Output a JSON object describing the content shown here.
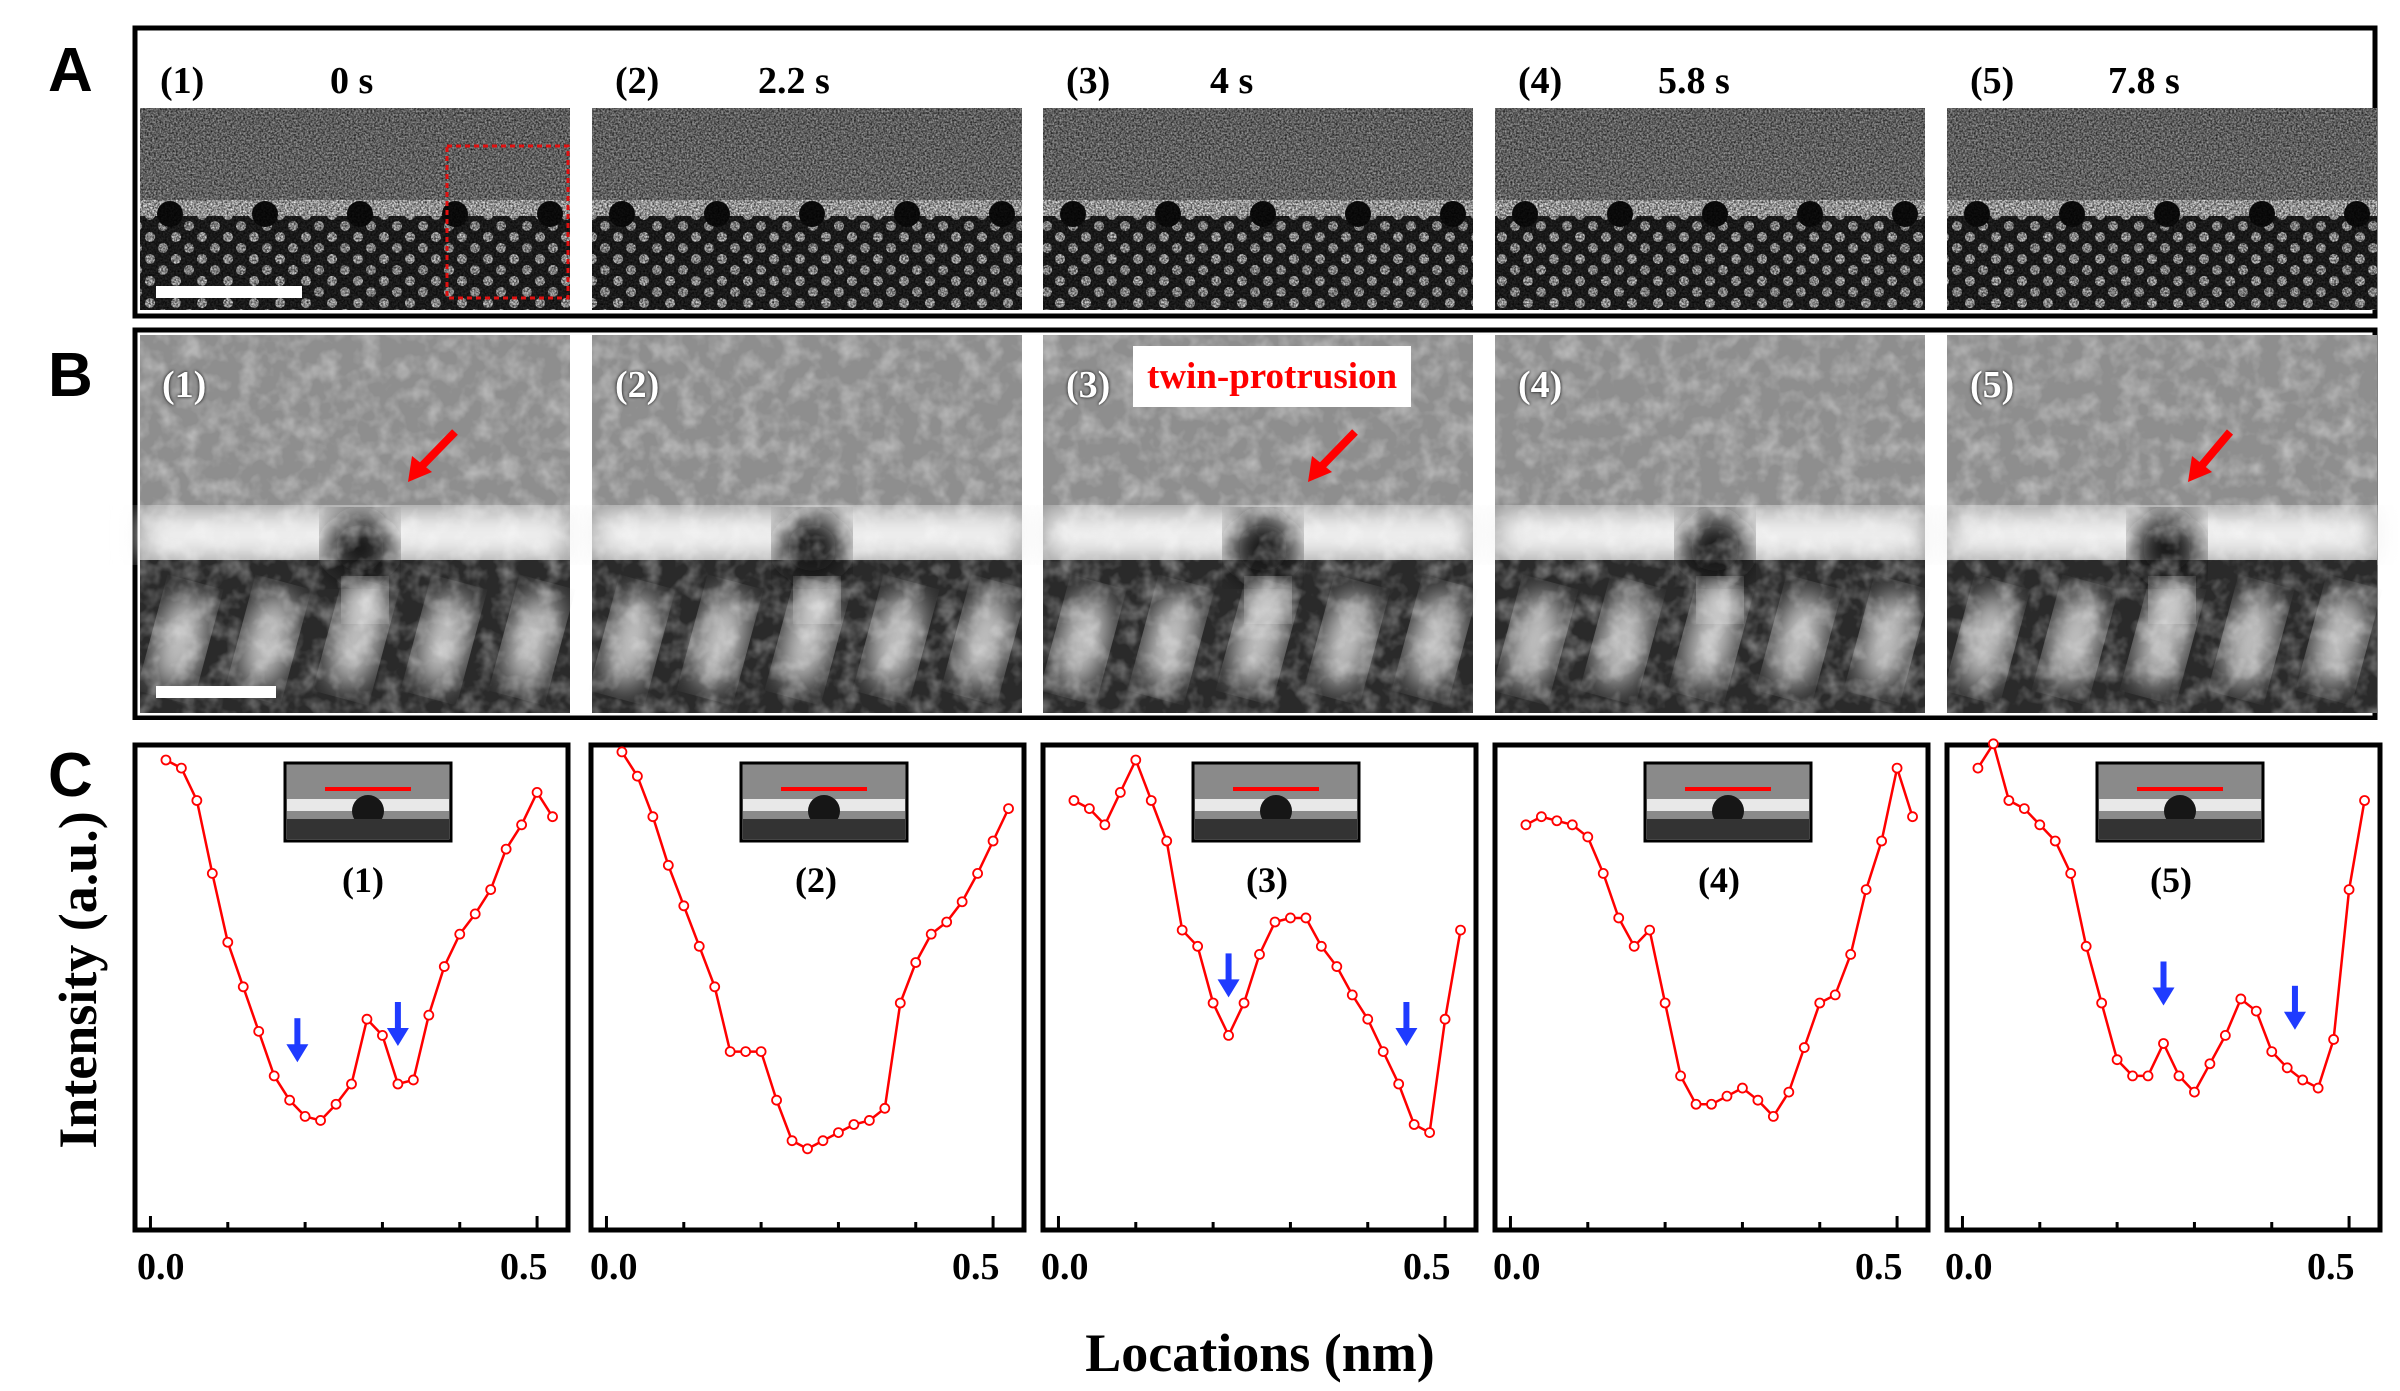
{
  "panel_letters": [
    "A",
    "B",
    "C"
  ],
  "panel_a": {
    "frames": [
      {
        "label": "(1)",
        "time": "0 s"
      },
      {
        "label": "(2)",
        "time": "2.2 s"
      },
      {
        "label": "(3)",
        "time": "4 s"
      },
      {
        "label": "(4)",
        "time": "5.8 s"
      },
      {
        "label": "(5)",
        "time": "7.8 s"
      }
    ]
  },
  "panel_b": {
    "frames": [
      {
        "label": "(1)"
      },
      {
        "label": "(2)"
      },
      {
        "label": "(3)"
      },
      {
        "label": "(4)"
      },
      {
        "label": "(5)"
      }
    ],
    "annotation": "twin-protrusion"
  },
  "colors": {
    "profile_line": "#ff0000",
    "arrow_red": "#ff0000",
    "arrow_blue": "#1f3bff",
    "roi_box": "#e01010"
  },
  "chart_data": [
    {
      "type": "line",
      "panel_label": "(1)",
      "xlim": [
        -0.02,
        0.54
      ],
      "ylim": [
        0,
        1
      ],
      "x_ticks": [
        "0.0",
        "0.5"
      ],
      "xlabel": "Locations (nm)",
      "ylabel": "Intensity (a.u.)",
      "marker": "open-circle",
      "x": [
        0.02,
        0.04,
        0.06,
        0.08,
        0.1,
        0.12,
        0.14,
        0.16,
        0.18,
        0.2,
        0.22,
        0.24,
        0.26,
        0.28,
        0.3,
        0.32,
        0.34,
        0.36,
        0.38,
        0.4,
        0.42,
        0.44,
        0.46,
        0.48,
        0.5,
        0.52
      ],
      "y": [
        1.0,
        0.98,
        0.9,
        0.72,
        0.55,
        0.44,
        0.33,
        0.22,
        0.16,
        0.12,
        0.11,
        0.15,
        0.2,
        0.36,
        0.32,
        0.2,
        0.21,
        0.37,
        0.49,
        0.57,
        0.62,
        0.68,
        0.78,
        0.84,
        0.92,
        0.86
      ],
      "blue_arrows_x": [
        0.19,
        0.32
      ]
    },
    {
      "type": "line",
      "panel_label": "(2)",
      "xlim": [
        -0.02,
        0.54
      ],
      "ylim": [
        0,
        1
      ],
      "x_ticks": [
        "0.0",
        "0.5"
      ],
      "marker": "open-circle",
      "x": [
        0.02,
        0.04,
        0.06,
        0.08,
        0.1,
        0.12,
        0.14,
        0.16,
        0.18,
        0.2,
        0.22,
        0.24,
        0.26,
        0.28,
        0.3,
        0.32,
        0.34,
        0.36,
        0.38,
        0.4,
        0.42,
        0.44,
        0.46,
        0.48,
        0.5,
        0.52
      ],
      "y": [
        1.02,
        0.96,
        0.86,
        0.74,
        0.64,
        0.54,
        0.44,
        0.28,
        0.28,
        0.28,
        0.16,
        0.06,
        0.04,
        0.06,
        0.08,
        0.1,
        0.11,
        0.14,
        0.4,
        0.5,
        0.57,
        0.6,
        0.65,
        0.72,
        0.8,
        0.88
      ],
      "blue_arrows_x": []
    },
    {
      "type": "line",
      "panel_label": "(3)",
      "xlim": [
        -0.02,
        0.54
      ],
      "ylim": [
        0,
        1
      ],
      "x_ticks": [
        "0.0",
        "0.5"
      ],
      "marker": "open-circle",
      "x": [
        0.02,
        0.04,
        0.06,
        0.08,
        0.1,
        0.12,
        0.14,
        0.16,
        0.18,
        0.2,
        0.22,
        0.24,
        0.26,
        0.28,
        0.3,
        0.32,
        0.34,
        0.36,
        0.38,
        0.4,
        0.42,
        0.44,
        0.46,
        0.48,
        0.5,
        0.52
      ],
      "y": [
        0.9,
        0.88,
        0.84,
        0.92,
        1.0,
        0.9,
        0.8,
        0.58,
        0.54,
        0.4,
        0.32,
        0.4,
        0.52,
        0.6,
        0.61,
        0.61,
        0.54,
        0.49,
        0.42,
        0.36,
        0.28,
        0.2,
        0.1,
        0.08,
        0.36,
        0.58
      ],
      "blue_arrows_x": [
        0.22,
        0.45
      ]
    },
    {
      "type": "line",
      "panel_label": "(4)",
      "xlim": [
        -0.02,
        0.54
      ],
      "ylim": [
        0,
        1
      ],
      "x_ticks": [
        "0.0",
        "0.5"
      ],
      "marker": "open-circle",
      "x": [
        0.02,
        0.04,
        0.06,
        0.08,
        0.1,
        0.12,
        0.14,
        0.16,
        0.18,
        0.2,
        0.22,
        0.24,
        0.26,
        0.28,
        0.3,
        0.32,
        0.34,
        0.36,
        0.38,
        0.4,
        0.42,
        0.44,
        0.46,
        0.48,
        0.5,
        0.52
      ],
      "y": [
        0.84,
        0.86,
        0.85,
        0.84,
        0.81,
        0.72,
        0.61,
        0.54,
        0.58,
        0.4,
        0.22,
        0.15,
        0.15,
        0.17,
        0.19,
        0.16,
        0.12,
        0.18,
        0.29,
        0.4,
        0.42,
        0.52,
        0.68,
        0.8,
        0.98,
        0.86
      ],
      "blue_arrows_x": []
    },
    {
      "type": "line",
      "panel_label": "(5)",
      "xlim": [
        -0.02,
        0.54
      ],
      "ylim": [
        0,
        1
      ],
      "x_ticks": [
        "0.0",
        "0.5"
      ],
      "marker": "open-circle",
      "x": [
        0.02,
        0.04,
        0.06,
        0.08,
        0.1,
        0.12,
        0.14,
        0.16,
        0.18,
        0.2,
        0.22,
        0.24,
        0.26,
        0.28,
        0.3,
        0.32,
        0.34,
        0.36,
        0.38,
        0.4,
        0.42,
        0.44,
        0.46,
        0.48,
        0.5,
        0.52
      ],
      "y": [
        0.98,
        1.04,
        0.9,
        0.88,
        0.84,
        0.8,
        0.72,
        0.54,
        0.4,
        0.26,
        0.22,
        0.22,
        0.3,
        0.22,
        0.18,
        0.25,
        0.32,
        0.41,
        0.38,
        0.28,
        0.24,
        0.21,
        0.19,
        0.31,
        0.68,
        0.9
      ],
      "blue_arrows_x": [
        0.26,
        0.43
      ]
    }
  ]
}
